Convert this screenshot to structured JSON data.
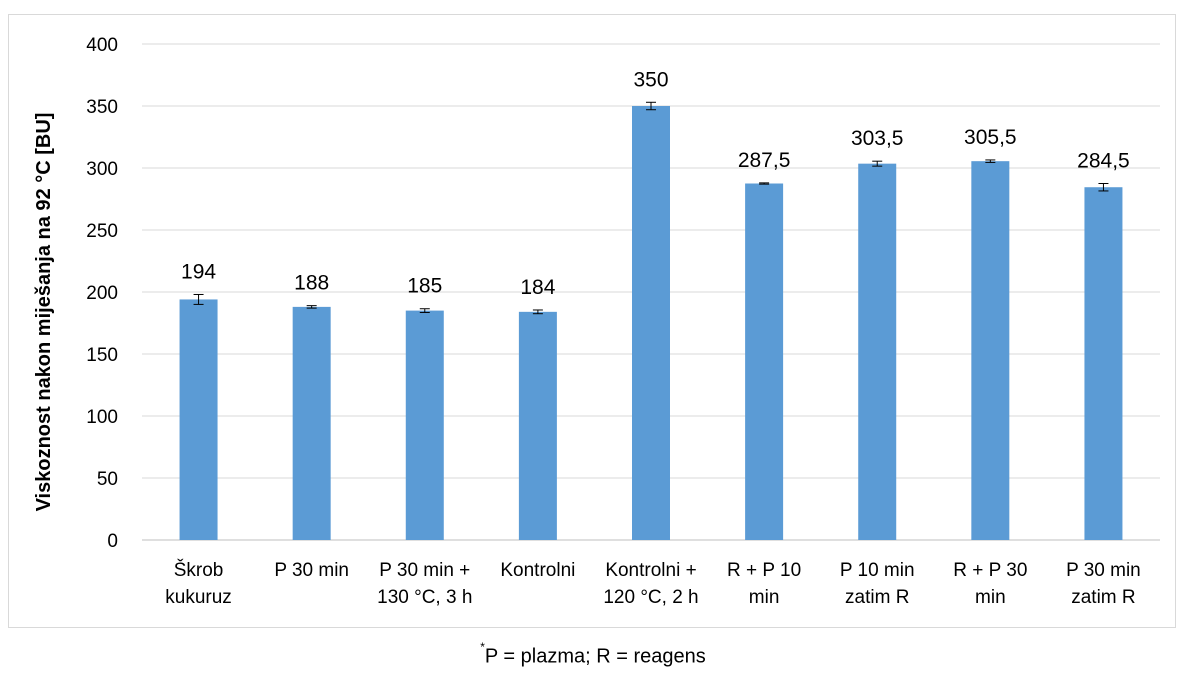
{
  "chart_data": {
    "type": "bar",
    "title": "",
    "xlabel": "",
    "ylabel": "Viskoznost nakon miješanja na 92 °C [BU]",
    "ylim": [
      0,
      400
    ],
    "yticks": [
      0,
      50,
      100,
      150,
      200,
      250,
      300,
      350,
      400
    ],
    "grid": true,
    "bar_color": "#5b9bd5",
    "categories": [
      [
        "Škrob",
        "kukuruz"
      ],
      [
        "P 30 min"
      ],
      [
        "P 30 min +",
        "130 °C, 3 h"
      ],
      [
        "Kontrolni"
      ],
      [
        "Kontrolni +",
        "120 °C, 2 h"
      ],
      [
        "R + P 10",
        "min"
      ],
      [
        "P 10 min",
        "zatim R"
      ],
      [
        "R + P 30",
        "min"
      ],
      [
        "P 30 min",
        "zatim R"
      ]
    ],
    "values": [
      194,
      188,
      185,
      184,
      350,
      287.5,
      303.5,
      305.5,
      284.5
    ],
    "value_labels": [
      "194",
      "188",
      "185",
      "184",
      "350",
      "287,5",
      "303,5",
      "305,5",
      "284,5"
    ],
    "errors": [
      4,
      1,
      1.5,
      1.5,
      3,
      0.5,
      2,
      1,
      3
    ]
  },
  "footnote": {
    "marker": "*",
    "text": "P = plazma; R = reagens"
  }
}
